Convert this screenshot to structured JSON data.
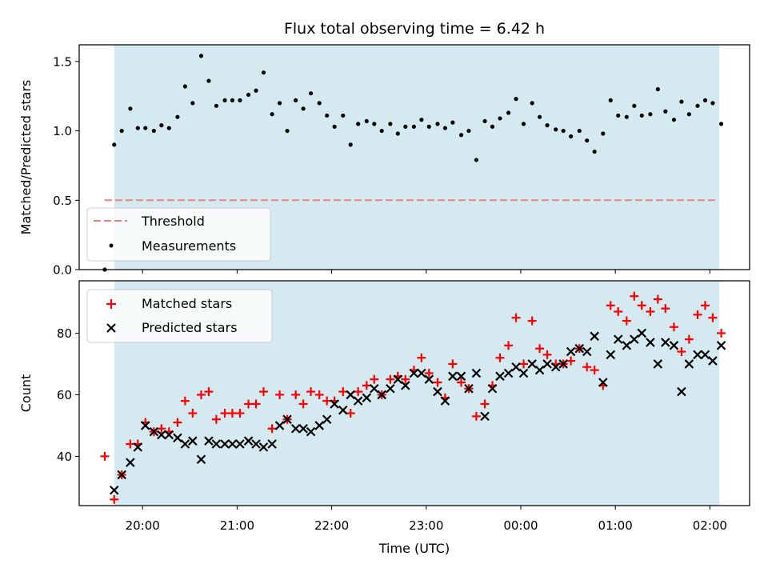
{
  "title": "Flux total observing time = 6.42 h",
  "colors": {
    "shade": "#d4eaf0",
    "threshold": "#f08080",
    "measurement": "#000000",
    "matched": "#ff0000",
    "predicted": "#000000"
  },
  "chart_data": [
    {
      "type": "scatter",
      "ylabel": "Matched/Predicted stars",
      "xlabel": "",
      "xlim_hours": [
        19.33,
        26.42
      ],
      "ylim": [
        0,
        1.62
      ],
      "yticks": [
        0.0,
        0.5,
        1.0,
        1.5
      ],
      "ytick_labels": [
        "0.0",
        "0.5",
        "1.0",
        "1.5"
      ],
      "xticks_hours": [
        20,
        21,
        22,
        23,
        24,
        25,
        26
      ],
      "shaded_span_hours": [
        19.7,
        26.1
      ],
      "legend": {
        "position": "lower left",
        "entries": [
          "Threshold",
          "Measurements"
        ]
      },
      "threshold": {
        "name": "Threshold",
        "value": 0.5,
        "x_range_hours": [
          19.6,
          26.07
        ]
      },
      "series": [
        {
          "name": "Measurements",
          "marker": "dot",
          "points": [
            [
              19.6,
              0.0
            ],
            [
              19.7,
              0.9
            ],
            [
              19.78,
              1.0
            ],
            [
              19.87,
              1.16
            ],
            [
              19.95,
              1.02
            ],
            [
              20.03,
              1.02
            ],
            [
              20.12,
              1.0
            ],
            [
              20.2,
              1.04
            ],
            [
              20.28,
              1.02
            ],
            [
              20.37,
              1.1
            ],
            [
              20.45,
              1.32
            ],
            [
              20.53,
              1.2
            ],
            [
              20.62,
              1.54
            ],
            [
              20.7,
              1.36
            ],
            [
              20.78,
              1.18
            ],
            [
              20.87,
              1.22
            ],
            [
              20.95,
              1.22
            ],
            [
              21.03,
              1.22
            ],
            [
              21.12,
              1.26
            ],
            [
              21.2,
              1.29
            ],
            [
              21.28,
              1.42
            ],
            [
              21.37,
              1.12
            ],
            [
              21.45,
              1.2
            ],
            [
              21.53,
              1.0
            ],
            [
              21.62,
              1.22
            ],
            [
              21.7,
              1.16
            ],
            [
              21.78,
              1.27
            ],
            [
              21.87,
              1.2
            ],
            [
              21.95,
              1.11
            ],
            [
              22.03,
              1.03
            ],
            [
              22.12,
              1.11
            ],
            [
              22.2,
              0.9
            ],
            [
              22.28,
              1.05
            ],
            [
              22.37,
              1.07
            ],
            [
              22.45,
              1.05
            ],
            [
              22.53,
              1.0
            ],
            [
              22.62,
              1.05
            ],
            [
              22.7,
              0.98
            ],
            [
              22.78,
              1.03
            ],
            [
              22.87,
              1.03
            ],
            [
              22.95,
              1.08
            ],
            [
              23.03,
              1.03
            ],
            [
              23.12,
              1.05
            ],
            [
              23.2,
              1.02
            ],
            [
              23.28,
              1.06
            ],
            [
              23.37,
              0.97
            ],
            [
              23.45,
              1.0
            ],
            [
              23.53,
              0.79
            ],
            [
              23.62,
              1.07
            ],
            [
              23.7,
              1.03
            ],
            [
              23.78,
              1.09
            ],
            [
              23.87,
              1.13
            ],
            [
              23.95,
              1.23
            ],
            [
              24.03,
              1.05
            ],
            [
              24.12,
              1.2
            ],
            [
              24.2,
              1.1
            ],
            [
              24.28,
              1.04
            ],
            [
              24.37,
              1.01
            ],
            [
              24.45,
              1.0
            ],
            [
              24.53,
              0.96
            ],
            [
              24.62,
              1.0
            ],
            [
              24.7,
              0.93
            ],
            [
              24.78,
              0.85
            ],
            [
              24.87,
              0.98
            ],
            [
              24.95,
              1.22
            ],
            [
              25.03,
              1.11
            ],
            [
              25.12,
              1.1
            ],
            [
              25.2,
              1.18
            ],
            [
              25.28,
              1.11
            ],
            [
              25.37,
              1.12
            ],
            [
              25.45,
              1.3
            ],
            [
              25.53,
              1.14
            ],
            [
              25.62,
              1.08
            ],
            [
              25.7,
              1.21
            ],
            [
              25.78,
              1.12
            ],
            [
              25.87,
              1.18
            ],
            [
              25.95,
              1.22
            ],
            [
              26.03,
              1.2
            ],
            [
              26.12,
              1.05
            ]
          ]
        }
      ]
    },
    {
      "type": "scatter",
      "ylabel": "Count",
      "xlabel": "Time (UTC)",
      "xlim_hours": [
        19.33,
        26.42
      ],
      "ylim": [
        24.0,
        97.0
      ],
      "yticks": [
        40,
        60,
        80
      ],
      "ytick_labels": [
        "40",
        "60",
        "80"
      ],
      "xticks_hours": [
        20,
        21,
        22,
        23,
        24,
        25,
        26
      ],
      "xtick_labels": [
        "20:00",
        "21:00",
        "22:00",
        "23:00",
        "00:00",
        "01:00",
        "02:00"
      ],
      "shaded_span_hours": [
        19.7,
        26.1
      ],
      "legend": {
        "position": "upper left",
        "entries": [
          "Matched stars",
          "Predicted stars"
        ]
      },
      "series": [
        {
          "name": "Matched stars",
          "marker": "plus",
          "points": [
            [
              19.6,
              40
            ],
            [
              19.7,
              26
            ],
            [
              19.78,
              34
            ],
            [
              19.87,
              44
            ],
            [
              19.95,
              44
            ],
            [
              20.03,
              51
            ],
            [
              20.12,
              48
            ],
            [
              20.2,
              49
            ],
            [
              20.28,
              48
            ],
            [
              20.37,
              51
            ],
            [
              20.45,
              58
            ],
            [
              20.53,
              54
            ],
            [
              20.62,
              60
            ],
            [
              20.7,
              61
            ],
            [
              20.78,
              52
            ],
            [
              20.87,
              54
            ],
            [
              20.95,
              54
            ],
            [
              21.03,
              54
            ],
            [
              21.12,
              57
            ],
            [
              21.2,
              57
            ],
            [
              21.28,
              61
            ],
            [
              21.37,
              49
            ],
            [
              21.45,
              60
            ],
            [
              21.53,
              52
            ],
            [
              21.62,
              60
            ],
            [
              21.7,
              57
            ],
            [
              21.78,
              61
            ],
            [
              21.87,
              60
            ],
            [
              21.95,
              58
            ],
            [
              22.03,
              58
            ],
            [
              22.12,
              61
            ],
            [
              22.2,
              54
            ],
            [
              22.28,
              61
            ],
            [
              22.37,
              63
            ],
            [
              22.45,
              65
            ],
            [
              22.53,
              60
            ],
            [
              22.62,
              65
            ],
            [
              22.7,
              66
            ],
            [
              22.78,
              65
            ],
            [
              22.87,
              68
            ],
            [
              22.95,
              72
            ],
            [
              23.03,
              67
            ],
            [
              23.12,
              64
            ],
            [
              23.2,
              59
            ],
            [
              23.28,
              70
            ],
            [
              23.37,
              64
            ],
            [
              23.45,
              62
            ],
            [
              23.53,
              53
            ],
            [
              23.62,
              57
            ],
            [
              23.7,
              63
            ],
            [
              23.78,
              72
            ],
            [
              23.87,
              76
            ],
            [
              23.95,
              85
            ],
            [
              24.03,
              70
            ],
            [
              24.12,
              84
            ],
            [
              24.2,
              75
            ],
            [
              24.28,
              73
            ],
            [
              24.37,
              70
            ],
            [
              24.45,
              70
            ],
            [
              24.53,
              71
            ],
            [
              24.62,
              75
            ],
            [
              24.7,
              69
            ],
            [
              24.78,
              68
            ],
            [
              24.87,
              63
            ],
            [
              24.95,
              89
            ],
            [
              25.03,
              87
            ],
            [
              25.12,
              84
            ],
            [
              25.2,
              92
            ],
            [
              25.28,
              89
            ],
            [
              25.37,
              87
            ],
            [
              25.45,
              91
            ],
            [
              25.53,
              88
            ],
            [
              25.62,
              82
            ],
            [
              25.7,
              74
            ],
            [
              25.78,
              78
            ],
            [
              25.87,
              86
            ],
            [
              25.95,
              89
            ],
            [
              26.03,
              85
            ],
            [
              26.12,
              80
            ]
          ]
        },
        {
          "name": "Predicted stars",
          "marker": "x",
          "points": [
            [
              19.7,
              29
            ],
            [
              19.78,
              34
            ],
            [
              19.87,
              38
            ],
            [
              19.95,
              43
            ],
            [
              20.03,
              50
            ],
            [
              20.12,
              48
            ],
            [
              20.2,
              47
            ],
            [
              20.28,
              47
            ],
            [
              20.37,
              46
            ],
            [
              20.45,
              44
            ],
            [
              20.53,
              45
            ],
            [
              20.62,
              39
            ],
            [
              20.7,
              45
            ],
            [
              20.78,
              44
            ],
            [
              20.87,
              44
            ],
            [
              20.95,
              44
            ],
            [
              21.03,
              44
            ],
            [
              21.12,
              45
            ],
            [
              21.2,
              44
            ],
            [
              21.28,
              43
            ],
            [
              21.37,
              44
            ],
            [
              21.45,
              50
            ],
            [
              21.53,
              52
            ],
            [
              21.62,
              49
            ],
            [
              21.7,
              49
            ],
            [
              21.78,
              48
            ],
            [
              21.87,
              50
            ],
            [
              21.95,
              52
            ],
            [
              22.03,
              57
            ],
            [
              22.12,
              55
            ],
            [
              22.2,
              60
            ],
            [
              22.28,
              58
            ],
            [
              22.37,
              59
            ],
            [
              22.45,
              62
            ],
            [
              22.53,
              60
            ],
            [
              22.62,
              62
            ],
            [
              22.7,
              65
            ],
            [
              22.78,
              63
            ],
            [
              22.87,
              67
            ],
            [
              22.95,
              67
            ],
            [
              23.03,
              65
            ],
            [
              23.12,
              61
            ],
            [
              23.2,
              58
            ],
            [
              23.28,
              66
            ],
            [
              23.37,
              66
            ],
            [
              23.45,
              62
            ],
            [
              23.53,
              67
            ],
            [
              23.62,
              53
            ],
            [
              23.7,
              62
            ],
            [
              23.78,
              66
            ],
            [
              23.87,
              67
            ],
            [
              23.95,
              69
            ],
            [
              24.03,
              67
            ],
            [
              24.12,
              70
            ],
            [
              24.2,
              68
            ],
            [
              24.28,
              70
            ],
            [
              24.37,
              69
            ],
            [
              24.45,
              70
            ],
            [
              24.53,
              74
            ],
            [
              24.62,
              75
            ],
            [
              24.7,
              74
            ],
            [
              24.78,
              79
            ],
            [
              24.87,
              64
            ],
            [
              24.95,
              73
            ],
            [
              25.03,
              78
            ],
            [
              25.12,
              76
            ],
            [
              25.2,
              78
            ],
            [
              25.28,
              80
            ],
            [
              25.37,
              77
            ],
            [
              25.45,
              70
            ],
            [
              25.53,
              77
            ],
            [
              25.62,
              76
            ],
            [
              25.7,
              61
            ],
            [
              25.78,
              70
            ],
            [
              25.87,
              73
            ],
            [
              25.95,
              73
            ],
            [
              26.03,
              71
            ],
            [
              26.12,
              76
            ]
          ]
        }
      ]
    }
  ]
}
